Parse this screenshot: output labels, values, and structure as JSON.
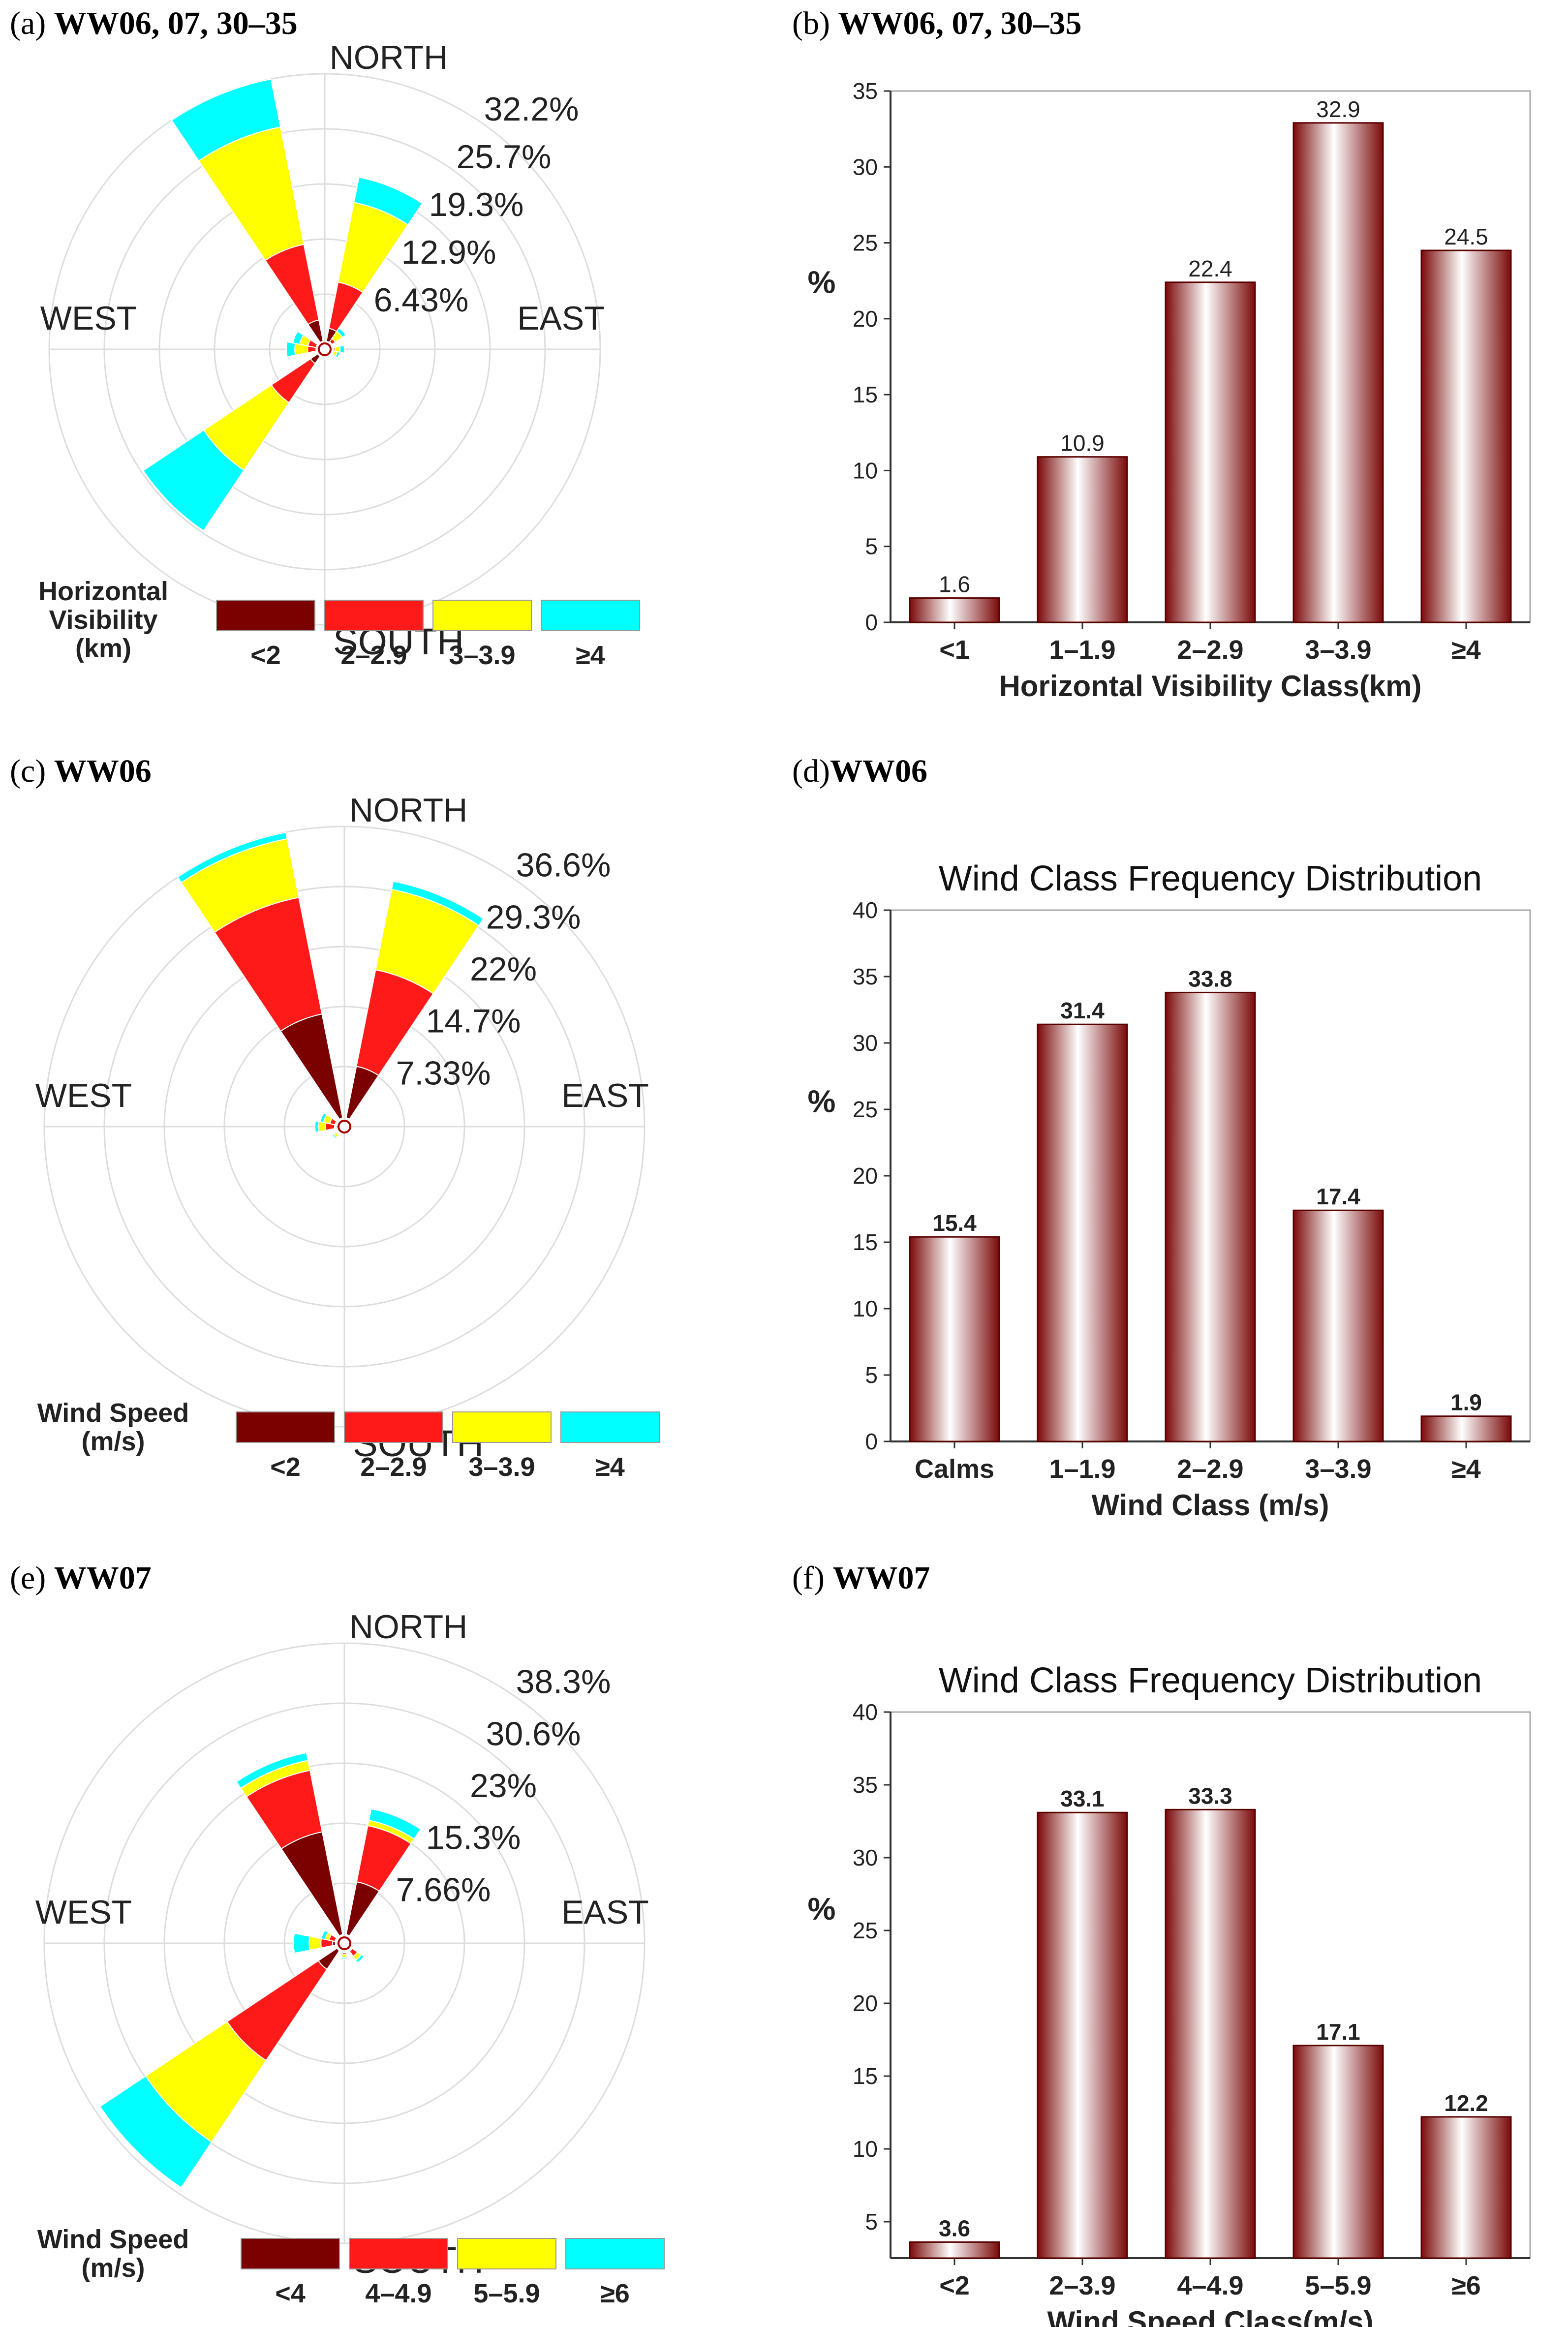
{
  "colors": {
    "dark_red": "#7b0000",
    "red": "#ff1a1a",
    "yellow": "#ffff00",
    "cyan": "#00ffff",
    "bar": "#8b1a1a",
    "grid_ring": "#dddddd"
  },
  "directions": [
    "NORTH",
    "EAST",
    "SOUTH",
    "WEST"
  ],
  "chart_data": [
    {
      "id": "a",
      "type": "windrose",
      "label": "(a)",
      "title": "WW06, 07, 30–35",
      "ring_labels": [
        "32.2%",
        "25.7%",
        "19.3%",
        "12.9%",
        "6.43%"
      ],
      "ring_max": 32.2,
      "legend_title": [
        "Horizontal",
        "Visibility",
        "(km)"
      ],
      "legend_labels": [
        "<2",
        "2–2.9",
        "3–3.9",
        "≥4"
      ],
      "sectors": [
        {
          "dir": 337.5,
          "values": [
            3.5,
            12.5,
            26.5,
            32.2
          ]
        },
        {
          "dir": 22.5,
          "values": [
            2.5,
            8.0,
            17.5,
            20.5
          ]
        },
        {
          "dir": 45,
          "values": [
            1.0,
            1.5,
            2.5,
            3.0
          ]
        },
        {
          "dir": 90,
          "values": [
            0.8,
            1.2,
            1.8,
            2.3
          ]
        },
        {
          "dir": 112.5,
          "values": [
            0.7,
            1.1,
            1.5,
            1.8
          ]
        },
        {
          "dir": 180,
          "values": [
            0.4,
            0.7,
            1.0,
            1.2
          ]
        },
        {
          "dir": 225,
          "values": [
            2.0,
            7.5,
            17.0,
            25.5
          ]
        },
        {
          "dir": 270,
          "values": [
            1.0,
            2.0,
            3.5,
            4.5
          ]
        },
        {
          "dir": 292.5,
          "values": [
            1.0,
            2.0,
            3.0,
            3.8
          ]
        }
      ]
    },
    {
      "id": "b",
      "type": "bar",
      "label": "(b)",
      "title": "WW06, 07, 30–35",
      "chart_title": "",
      "categories": [
        "<1",
        "1–1.9",
        "2–2.9",
        "3–3.9",
        "≥4"
      ],
      "values": [
        1.6,
        10.9,
        22.4,
        32.9,
        24.5
      ],
      "value_labels": [
        "1.6",
        "10.9",
        "22.4",
        "32.9",
        "24.5"
      ],
      "ylabel": "%",
      "xlabel": "Horizontal Visibility Class(km)",
      "ylim": [
        0,
        35
      ],
      "ytick_labels": [
        "0",
        "5",
        "10",
        "15",
        "20",
        "25",
        "30",
        "35"
      ]
    },
    {
      "id": "c",
      "type": "windrose",
      "label": "(c)",
      "title": "WW06",
      "ring_labels": [
        "36.6%",
        "29.3%",
        "22%",
        "14.7%",
        "7.33%"
      ],
      "ring_max": 36.6,
      "legend_title": [
        "Wind Speed",
        "(m/s)"
      ],
      "legend_labels": [
        "<2",
        "2–2.9",
        "3–3.9",
        "≥4"
      ],
      "sectors": [
        {
          "dir": 337.5,
          "values": [
            14.0,
            28.5,
            35.8,
            36.6
          ]
        },
        {
          "dir": 22.5,
          "values": [
            7.5,
            19.5,
            29.5,
            30.5
          ]
        },
        {
          "dir": 225,
          "values": [
            0.6,
            1.2,
            1.6,
            1.8
          ]
        },
        {
          "dir": 270,
          "values": [
            1.2,
            2.3,
            3.2,
            3.6
          ]
        },
        {
          "dir": 292.5,
          "values": [
            1.0,
            1.8,
            2.6,
            3.0
          ]
        },
        {
          "dir": 135,
          "values": [
            0.5,
            0.9,
            1.2,
            1.4
          ]
        }
      ]
    },
    {
      "id": "d",
      "type": "bar",
      "label": "(d)",
      "title": "WW06",
      "chart_title": "Wind Class Frequency Distribution",
      "categories": [
        "Calms",
        "1–1.9",
        "2–2.9",
        "3–3.9",
        "≥4"
      ],
      "values": [
        15.4,
        31.4,
        33.8,
        17.4,
        1.9
      ],
      "value_labels": [
        "15.4",
        "31.4",
        "33.8",
        "17.4",
        "1.9"
      ],
      "ylabel": "%",
      "xlabel": "Wind Class (m/s)",
      "ylim": [
        0,
        40
      ],
      "ytick_labels": [
        "0",
        "5",
        "10",
        "15",
        "20",
        "25",
        "30",
        "35",
        "40"
      ]
    },
    {
      "id": "e",
      "type": "windrose",
      "label": "(e)",
      "title": "WW07",
      "ring_labels": [
        "38.3%",
        "30.6%",
        "23%",
        "15.3%",
        "7.66%"
      ],
      "ring_max": 38.3,
      "legend_title": [
        "Wind Speed",
        "(m/s)"
      ],
      "legend_labels": [
        "<4",
        "4–4.9",
        "5–5.9",
        "≥6"
      ],
      "sectors": [
        {
          "dir": 337.5,
          "values": [
            14.5,
            22.5,
            23.8,
            24.8
          ]
        },
        {
          "dir": 22.5,
          "values": [
            8.0,
            15.3,
            16.0,
            17.5
          ]
        },
        {
          "dir": 135,
          "values": [
            1.0,
            2.0,
            2.6,
            3.0
          ]
        },
        {
          "dir": 180,
          "values": [
            0.8,
            1.4,
            1.8,
            2.0
          ]
        },
        {
          "dir": 225,
          "values": [
            4.0,
            18.0,
            30.5,
            37.5
          ]
        },
        {
          "dir": 270,
          "values": [
            1.5,
            3.0,
            4.5,
            6.5
          ]
        },
        {
          "dir": 292.5,
          "values": [
            1.0,
            2.0,
            2.5,
            3.0
          ]
        }
      ]
    },
    {
      "id": "f",
      "type": "bar",
      "label": "(f)",
      "title": "WW07",
      "chart_title": "Wind Class Frequency Distribution",
      "categories": [
        "<2",
        "2–3.9",
        "4–4.9",
        "5–5.9",
        "≥6"
      ],
      "values": [
        3.6,
        33.1,
        33.3,
        17.1,
        12.2
      ],
      "value_labels": [
        "3.6",
        "33.1",
        "33.3",
        "17.1",
        "12.2"
      ],
      "ylabel": "%",
      "xlabel": "Wind Speed Class(m/s)",
      "ylim": [
        2.5,
        40
      ],
      "ytick_labels": [
        "5",
        "10",
        "15",
        "20",
        "25",
        "30",
        "35",
        "40"
      ]
    }
  ]
}
